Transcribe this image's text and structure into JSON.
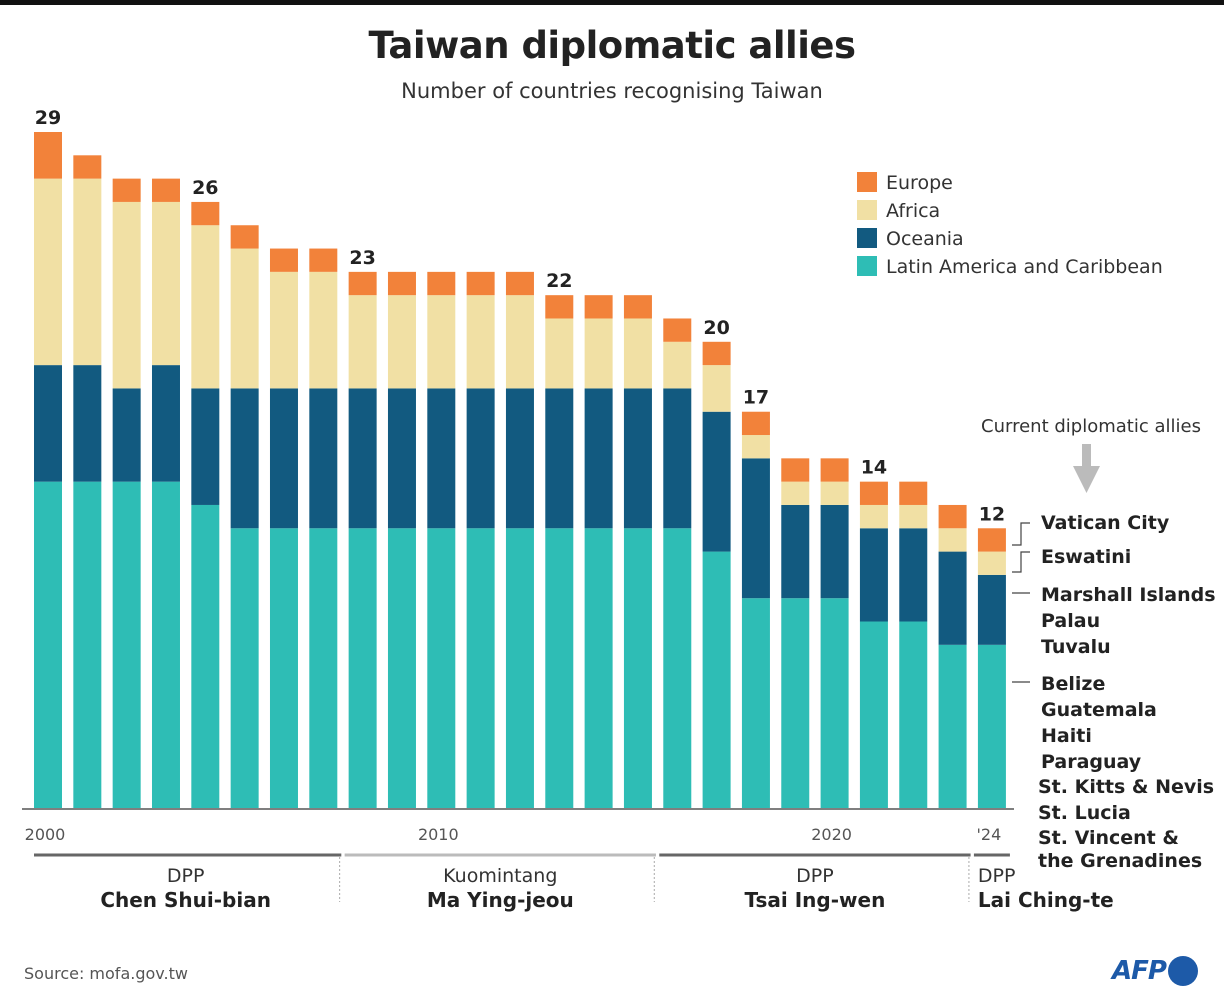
{
  "title": "Taiwan diplomatic allies",
  "subtitle": "Number of countries recognising Taiwan",
  "source": "Source: mofa.gov.tw",
  "logo": "AFP",
  "chart_data": {
    "type": "bar",
    "stacked": true,
    "title": "Taiwan diplomatic allies",
    "subtitle": "Number of countries recognising Taiwan",
    "categories": [
      2000,
      2001,
      2002,
      2003,
      2004,
      2005,
      2006,
      2007,
      2008,
      2009,
      2010,
      2011,
      2012,
      2013,
      2014,
      2015,
      2016,
      2017,
      2018,
      2019,
      2020,
      2021,
      2022,
      2023,
      2024
    ],
    "x_tick_labels": [
      {
        "year": 2000,
        "text": "2000"
      },
      {
        "year": 2010,
        "text": "2010"
      },
      {
        "year": 2020,
        "text": "2020"
      },
      {
        "year": 2024,
        "text": "'24"
      }
    ],
    "ylim": [
      0,
      29
    ],
    "grid": false,
    "legend_placement": "top-right",
    "series": [
      {
        "name": "Latin America and Caribbean",
        "color": "#2ebdb5",
        "values": [
          14,
          14,
          14,
          14,
          13,
          12,
          12,
          12,
          12,
          12,
          12,
          12,
          12,
          12,
          12,
          12,
          12,
          11,
          9,
          9,
          9,
          8,
          8,
          7,
          7
        ]
      },
      {
        "name": "Oceania",
        "color": "#125a80",
        "values": [
          5,
          5,
          4,
          5,
          5,
          6,
          6,
          6,
          6,
          6,
          6,
          6,
          6,
          6,
          6,
          6,
          6,
          6,
          6,
          4,
          4,
          4,
          4,
          4,
          3
        ]
      },
      {
        "name": "Africa",
        "color": "#f1e0a4",
        "values": [
          8,
          8,
          8,
          7,
          7,
          6,
          5,
          5,
          4,
          4,
          4,
          4,
          4,
          3,
          3,
          3,
          2,
          2,
          1,
          1,
          1,
          1,
          1,
          1,
          1
        ]
      },
      {
        "name": "Europe",
        "color": "#f2823a",
        "values": [
          2,
          1,
          1,
          1,
          1,
          1,
          1,
          1,
          1,
          1,
          1,
          1,
          1,
          1,
          1,
          1,
          1,
          1,
          1,
          1,
          1,
          1,
          1,
          1,
          1
        ]
      }
    ],
    "legend_order": [
      "Europe",
      "Africa",
      "Oceania",
      "Latin America and Caribbean"
    ],
    "value_labels": [
      {
        "year": 2000,
        "text": "29"
      },
      {
        "year": 2004,
        "text": "26"
      },
      {
        "year": 2008,
        "text": "23"
      },
      {
        "year": 2013,
        "text": "22"
      },
      {
        "year": 2017,
        "text": "20"
      },
      {
        "year": 2018,
        "text": "17"
      },
      {
        "year": 2021,
        "text": "14"
      },
      {
        "year": 2024,
        "text": "12"
      }
    ],
    "annotation": {
      "heading": "Current diplomatic allies",
      "groups": [
        {
          "series": "Europe",
          "countries": [
            "Vatican City"
          ]
        },
        {
          "series": "Africa",
          "countries": [
            "Eswatini"
          ]
        },
        {
          "series": "Oceania",
          "countries": [
            "Marshall Islands",
            "Palau",
            "Tuvalu"
          ]
        },
        {
          "series": "Latin America and Caribbean",
          "countries": [
            "Belize",
            "Guatemala",
            "Haiti",
            "Paraguay",
            "St. Kitts & Nevis",
            "St. Lucia",
            "St. Vincent &",
            "the Grenadines"
          ]
        }
      ]
    },
    "periods": [
      {
        "party": "DPP",
        "leader": "Chen Shui-bian",
        "from": 2000,
        "to": 2007,
        "color": "#666666"
      },
      {
        "party": "Kuomintang",
        "leader": "Ma Ying-jeou",
        "from": 2008,
        "to": 2015,
        "color": "#bbbbbb"
      },
      {
        "party": "DPP",
        "leader": "Tsai Ing-wen",
        "from": 2016,
        "to": 2023,
        "color": "#666666"
      },
      {
        "party": "DPP",
        "leader": "Lai Ching-te",
        "from": 2024,
        "to": 2024,
        "color": "#666666"
      }
    ]
  }
}
